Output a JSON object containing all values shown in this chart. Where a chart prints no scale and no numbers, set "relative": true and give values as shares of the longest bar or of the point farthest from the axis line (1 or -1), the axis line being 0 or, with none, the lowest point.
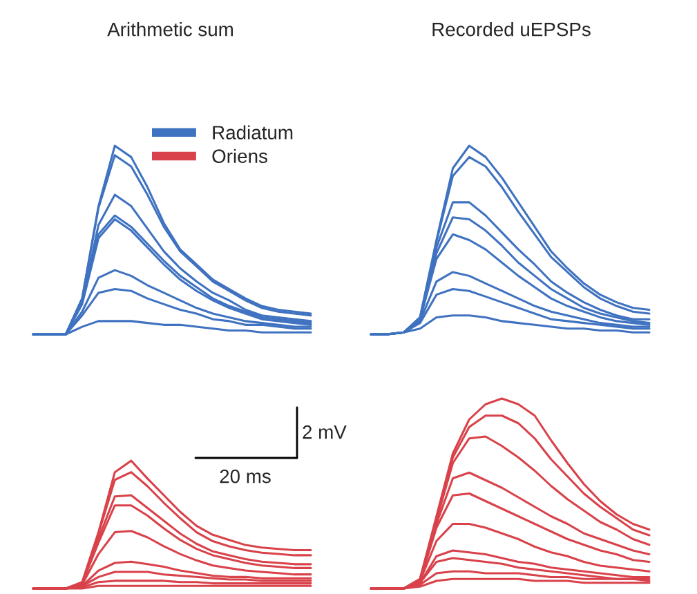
{
  "chart_data": [
    {
      "type": "line",
      "title": "Arithmetic sum",
      "relative": true,
      "legend": "top right",
      "categories": [
        null,
        null,
        null,
        null,
        null,
        null,
        null,
        null,
        null,
        null,
        null,
        null,
        null,
        null,
        null,
        null,
        null,
        null
      ],
      "series": [
        {
          "name": "Radiatum",
          "color": "#3f72c0",
          "values": [
            0,
            0,
            0,
            0.19,
            0.68,
            1,
            0.94,
            0.78,
            0.59,
            0.45,
            0.37,
            0.29,
            0.24,
            0.19,
            0.15,
            0.13,
            0.12,
            0.11
          ]
        },
        {
          "color": "#3f72c0",
          "values": [
            0,
            0,
            0,
            0.19,
            0.67,
            0.95,
            0.89,
            0.74,
            0.57,
            0.44,
            0.36,
            0.28,
            0.23,
            0.18,
            0.14,
            0.12,
            0.11,
            0.1
          ]
        },
        {
          "color": "#3f72c0",
          "values": [
            0,
            0,
            0,
            0.17,
            0.58,
            0.74,
            0.68,
            0.56,
            0.44,
            0.35,
            0.28,
            0.22,
            0.18,
            0.13,
            0.1,
            0.09,
            0.08,
            0.07
          ]
        },
        {
          "color": "#3f72c0",
          "values": [
            0,
            0,
            0,
            0.17,
            0.53,
            0.63,
            0.57,
            0.48,
            0.39,
            0.31,
            0.25,
            0.19,
            0.15,
            0.12,
            0.09,
            0.08,
            0.07,
            0.06
          ]
        },
        {
          "color": "#3f72c0",
          "values": [
            0,
            0,
            0,
            0.16,
            0.51,
            0.61,
            0.55,
            0.46,
            0.37,
            0.29,
            0.23,
            0.18,
            0.14,
            0.11,
            0.08,
            0.07,
            0.06,
            0.05
          ]
        },
        {
          "color": "#3f72c0",
          "values": [
            0,
            0,
            0,
            0.12,
            0.3,
            0.34,
            0.31,
            0.26,
            0.22,
            0.18,
            0.14,
            0.11,
            0.09,
            0.07,
            0.06,
            0.05,
            0.04,
            0.04
          ]
        },
        {
          "color": "#3f72c0",
          "values": [
            0,
            0,
            0,
            0.1,
            0.22,
            0.24,
            0.23,
            0.19,
            0.16,
            0.13,
            0.11,
            0.08,
            0.07,
            0.05,
            0.05,
            0.04,
            0.03,
            0.03
          ]
        },
        {
          "color": "#3f72c0",
          "values": [
            0,
            0,
            0,
            0.04,
            0.07,
            0.07,
            0.07,
            0.06,
            0.05,
            0.05,
            0.04,
            0.03,
            0.02,
            0.02,
            0.01,
            0.01,
            0.01,
            0.01
          ]
        }
      ]
    },
    {
      "type": "line",
      "title": "Recorded uEPSPs",
      "relative": true,
      "categories": [
        null,
        null,
        null,
        null,
        null,
        null,
        null,
        null,
        null,
        null,
        null,
        null,
        null,
        null,
        null,
        null,
        null,
        null
      ],
      "series": [
        {
          "color": "#3f72c0",
          "values": [
            0,
            0,
            0.01,
            0.09,
            0.5,
            0.88,
            1.0,
            0.94,
            0.83,
            0.7,
            0.57,
            0.44,
            0.35,
            0.27,
            0.21,
            0.17,
            0.14,
            0.13
          ]
        },
        {
          "color": "#3f72c0",
          "values": [
            0,
            0,
            0.01,
            0.09,
            0.49,
            0.84,
            0.94,
            0.89,
            0.78,
            0.65,
            0.53,
            0.41,
            0.33,
            0.25,
            0.19,
            0.15,
            0.12,
            0.11
          ]
        },
        {
          "color": "#3f72c0",
          "values": [
            0,
            0,
            0.01,
            0.08,
            0.46,
            0.7,
            0.7,
            0.63,
            0.54,
            0.45,
            0.37,
            0.28,
            0.22,
            0.17,
            0.13,
            0.1,
            0.08,
            0.08
          ]
        },
        {
          "color": "#3f72c0",
          "values": [
            0,
            0,
            0.01,
            0.08,
            0.43,
            0.62,
            0.61,
            0.55,
            0.47,
            0.38,
            0.31,
            0.24,
            0.19,
            0.14,
            0.11,
            0.09,
            0.07,
            0.06
          ]
        },
        {
          "color": "#3f72c0",
          "values": [
            0,
            0,
            0.01,
            0.08,
            0.4,
            0.53,
            0.5,
            0.45,
            0.38,
            0.31,
            0.25,
            0.19,
            0.15,
            0.12,
            0.09,
            0.07,
            0.06,
            0.05
          ]
        },
        {
          "color": "#3f72c0",
          "values": [
            0,
            0,
            0.01,
            0.07,
            0.28,
            0.33,
            0.31,
            0.27,
            0.23,
            0.19,
            0.15,
            0.12,
            0.1,
            0.08,
            0.06,
            0.05,
            0.04,
            0.04
          ]
        },
        {
          "color": "#3f72c0",
          "values": [
            0,
            0,
            0.01,
            0.06,
            0.21,
            0.24,
            0.23,
            0.2,
            0.17,
            0.14,
            0.11,
            0.08,
            0.07,
            0.06,
            0.05,
            0.04,
            0.03,
            0.03
          ]
        },
        {
          "color": "#3f72c0",
          "values": [
            0,
            0,
            0.01,
            0.03,
            0.09,
            0.1,
            0.1,
            0.09,
            0.07,
            0.06,
            0.05,
            0.04,
            0.03,
            0.03,
            0.02,
            0.02,
            0.01,
            0.01
          ]
        }
      ]
    },
    {
      "type": "line",
      "relative": true,
      "annotations": [
        "2 mV",
        "20 ms"
      ],
      "categories": [
        null,
        null,
        null,
        null,
        null,
        null,
        null,
        null,
        null,
        null,
        null,
        null,
        null,
        null,
        null,
        null,
        null,
        null
      ],
      "series": [
        {
          "name": "Oriens",
          "color": "#d9424a",
          "values": [
            0,
            0,
            0,
            0.05,
            0.44,
            0.91,
            1.0,
            0.86,
            0.73,
            0.6,
            0.49,
            0.42,
            0.38,
            0.34,
            0.32,
            0.31,
            0.3,
            0.3
          ]
        },
        {
          "color": "#d9424a",
          "values": [
            0,
            0,
            0,
            0.04,
            0.43,
            0.85,
            0.91,
            0.8,
            0.67,
            0.55,
            0.44,
            0.37,
            0.33,
            0.3,
            0.28,
            0.27,
            0.26,
            0.26
          ]
        },
        {
          "color": "#d9424a",
          "values": [
            0,
            0,
            0,
            0.04,
            0.39,
            0.72,
            0.73,
            0.63,
            0.53,
            0.43,
            0.35,
            0.29,
            0.26,
            0.23,
            0.21,
            0.2,
            0.19,
            0.19
          ]
        },
        {
          "color": "#d9424a",
          "values": [
            0,
            0,
            0,
            0.04,
            0.36,
            0.65,
            0.65,
            0.57,
            0.47,
            0.38,
            0.31,
            0.26,
            0.23,
            0.2,
            0.18,
            0.17,
            0.16,
            0.16
          ]
        },
        {
          "color": "#d9424a",
          "values": [
            0,
            0,
            0,
            0.03,
            0.27,
            0.44,
            0.45,
            0.4,
            0.33,
            0.27,
            0.22,
            0.18,
            0.16,
            0.14,
            0.13,
            0.12,
            0.11,
            0.11
          ]
        },
        {
          "color": "#d9424a",
          "values": [
            0,
            0,
            0,
            0.02,
            0.14,
            0.2,
            0.21,
            0.19,
            0.17,
            0.14,
            0.12,
            0.1,
            0.09,
            0.09,
            0.08,
            0.08,
            0.08,
            0.08
          ]
        },
        {
          "color": "#d9424a",
          "values": [
            0,
            0,
            0,
            0.02,
            0.09,
            0.13,
            0.13,
            0.13,
            0.11,
            0.1,
            0.09,
            0.08,
            0.07,
            0.07,
            0.06,
            0.06,
            0.06,
            0.06
          ]
        },
        {
          "color": "#d9424a",
          "values": [
            0,
            0,
            0,
            0.01,
            0.05,
            0.06,
            0.06,
            0.06,
            0.06,
            0.05,
            0.05,
            0.04,
            0.04,
            0.04,
            0.04,
            0.04,
            0.04,
            0.04
          ]
        },
        {
          "color": "#d9424a",
          "values": [
            0,
            0,
            0,
            0,
            0.02,
            0.02,
            0.02,
            0.02,
            0.02,
            0.02,
            0.02,
            0.02,
            0.02,
            0.02,
            0.02,
            0.02,
            0.02,
            0.02
          ]
        }
      ]
    },
    {
      "type": "line",
      "relative": true,
      "categories": [
        null,
        null,
        null,
        null,
        null,
        null,
        null,
        null,
        null,
        null,
        null,
        null,
        null,
        null,
        null,
        null,
        null,
        null
      ],
      "series": [
        {
          "color": "#d9424a",
          "values": [
            0,
            0,
            0,
            0.05,
            0.38,
            0.71,
            0.89,
            0.97,
            1.0,
            0.97,
            0.91,
            0.78,
            0.66,
            0.55,
            0.46,
            0.39,
            0.34,
            0.31
          ]
        },
        {
          "color": "#d9424a",
          "values": [
            0,
            0,
            0,
            0.05,
            0.37,
            0.69,
            0.85,
            0.91,
            0.91,
            0.87,
            0.79,
            0.68,
            0.59,
            0.5,
            0.43,
            0.37,
            0.31,
            0.28
          ]
        },
        {
          "color": "#d9424a",
          "values": [
            0,
            0,
            0,
            0.05,
            0.36,
            0.66,
            0.79,
            0.8,
            0.75,
            0.69,
            0.62,
            0.54,
            0.47,
            0.41,
            0.35,
            0.31,
            0.26,
            0.23
          ]
        },
        {
          "color": "#d9424a",
          "values": [
            0,
            0,
            0,
            0.04,
            0.34,
            0.58,
            0.61,
            0.57,
            0.53,
            0.48,
            0.43,
            0.38,
            0.34,
            0.29,
            0.26,
            0.23,
            0.2,
            0.18
          ]
        },
        {
          "color": "#d9424a",
          "values": [
            0,
            0,
            0,
            0.04,
            0.32,
            0.49,
            0.5,
            0.46,
            0.42,
            0.38,
            0.34,
            0.3,
            0.26,
            0.23,
            0.2,
            0.18,
            0.15,
            0.14
          ]
        },
        {
          "color": "#d9424a",
          "values": [
            0,
            0,
            0,
            0.04,
            0.25,
            0.34,
            0.34,
            0.32,
            0.29,
            0.26,
            0.22,
            0.19,
            0.17,
            0.14,
            0.12,
            0.11,
            0.1,
            0.09
          ]
        },
        {
          "color": "#d9424a",
          "values": [
            0,
            0,
            0,
            0.03,
            0.17,
            0.2,
            0.19,
            0.18,
            0.16,
            0.14,
            0.13,
            0.11,
            0.1,
            0.09,
            0.08,
            0.07,
            0.06,
            0.06
          ]
        },
        {
          "color": "#d9424a",
          "values": [
            0,
            0,
            0,
            0.03,
            0.14,
            0.16,
            0.15,
            0.14,
            0.13,
            0.11,
            0.1,
            0.09,
            0.08,
            0.07,
            0.06,
            0.05,
            0.05,
            0.04
          ]
        },
        {
          "color": "#d9424a",
          "values": [
            0,
            0,
            0,
            0.02,
            0.08,
            0.09,
            0.09,
            0.08,
            0.08,
            0.08,
            0.07,
            0.06,
            0.06,
            0.05,
            0.05,
            0.05,
            0.05,
            0.05
          ]
        },
        {
          "color": "#d9424a",
          "values": [
            0,
            0,
            0,
            0.01,
            0.04,
            0.05,
            0.05,
            0.05,
            0.05,
            0.05,
            0.04,
            0.04,
            0.04,
            0.03,
            0.03,
            0.03,
            0.03,
            0.03
          ]
        }
      ]
    }
  ]
}
